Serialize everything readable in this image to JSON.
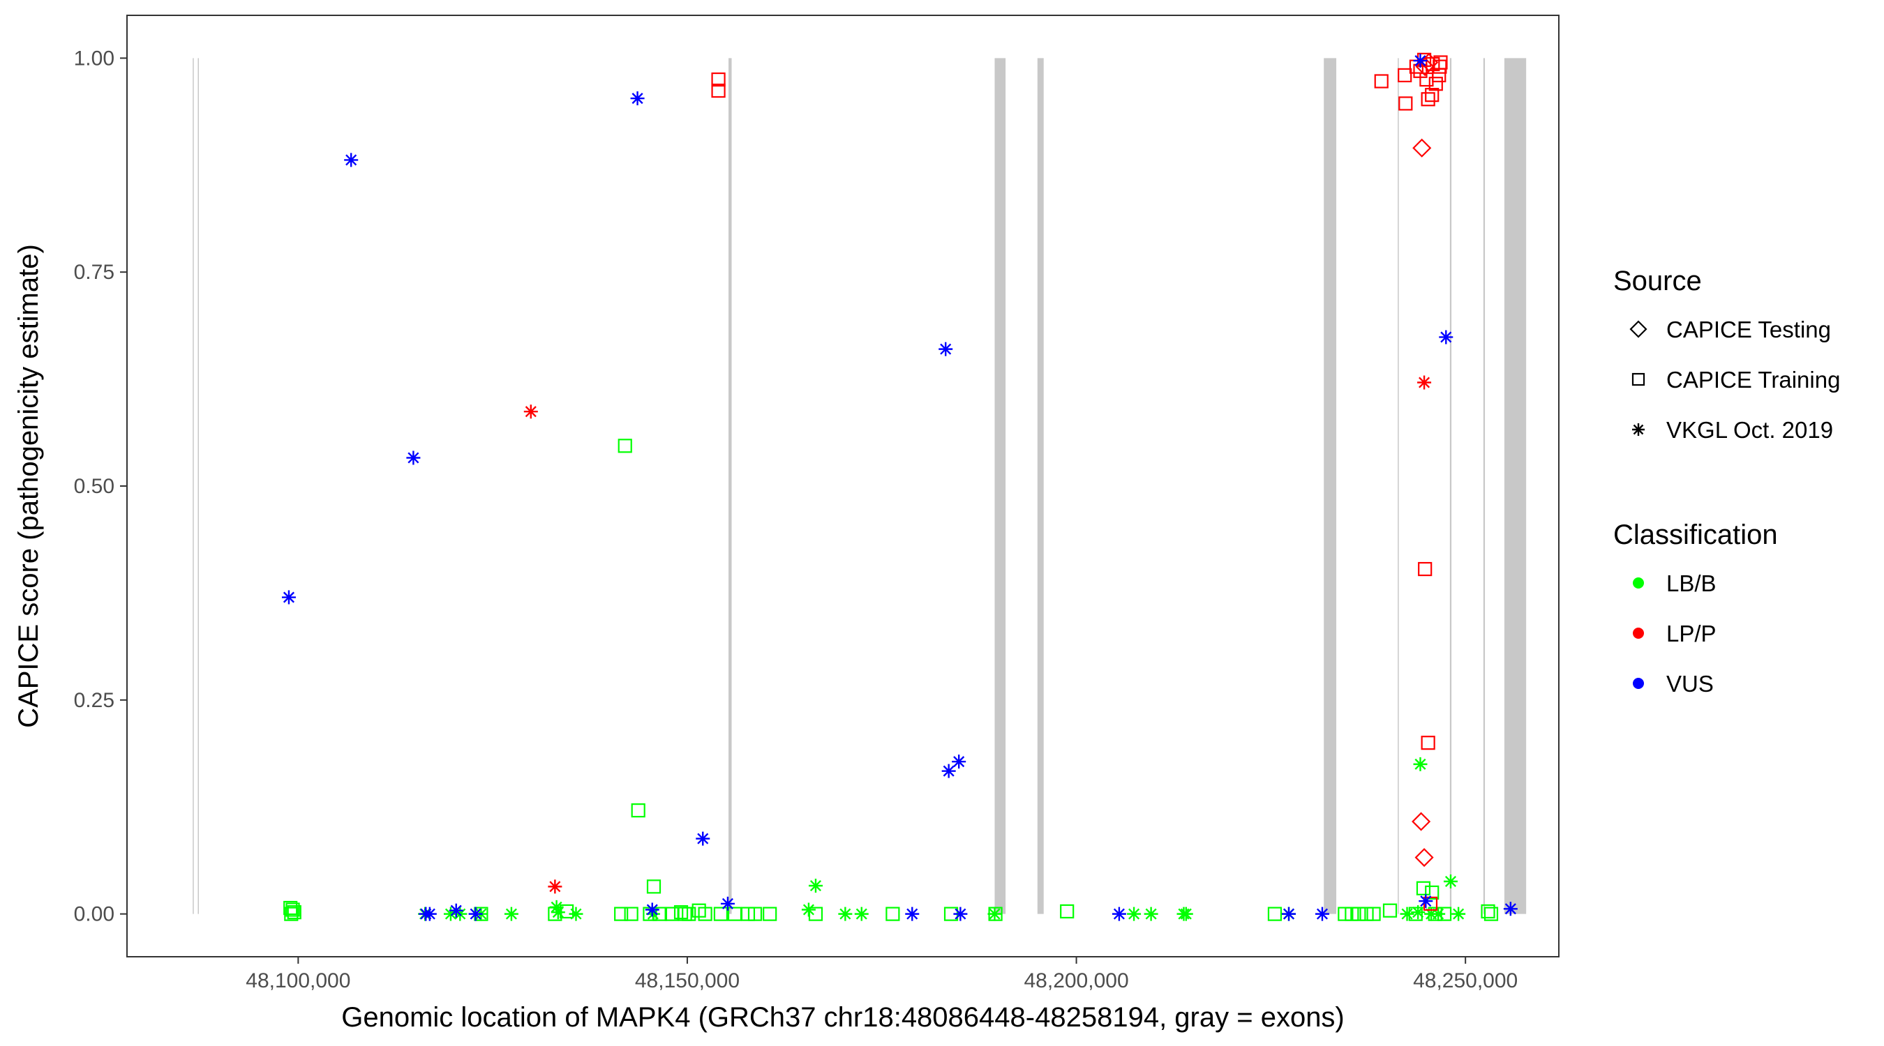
{
  "chart_data": {
    "type": "scatter",
    "title": "",
    "xlabel": "Genomic location of MAPK4 (GRCh37 chr18:48086448-48258194, gray = exons)",
    "ylabel": "CAPICE score (pathogenicity estimate)",
    "xlim": [
      48078000,
      48262000
    ],
    "ylim": [
      -0.05,
      1.05
    ],
    "x_ticks": [
      48100000,
      48150000,
      48200000,
      48250000
    ],
    "x_tick_labels": [
      "48,100,000",
      "48,150,000",
      "48,200,000",
      "48,250,000"
    ],
    "y_ticks": [
      0,
      0.25,
      0.5,
      0.75,
      1
    ],
    "y_tick_labels": [
      "0.00",
      "0.25",
      "0.50",
      "0.75",
      "1.00"
    ],
    "grid": false,
    "legend_position": "right",
    "colors": {
      "LB/B": "#00ff00",
      "LP/P": "#ff0000",
      "VUS": "#0000ff",
      "exon": "#c8c8c8"
    },
    "exons": [
      {
        "start": 48086448,
        "end": 48086550
      },
      {
        "start": 48087100,
        "end": 48087200
      },
      {
        "start": 48155300,
        "end": 48155700
      },
      {
        "start": 48189500,
        "end": 48190900
      },
      {
        "start": 48195000,
        "end": 48195800
      },
      {
        "start": 48231800,
        "end": 48233400
      },
      {
        "start": 48241300,
        "end": 48241400
      },
      {
        "start": 48248000,
        "end": 48248200
      },
      {
        "start": 48252300,
        "end": 48252500
      },
      {
        "start": 48255000,
        "end": 48257800
      }
    ],
    "legends": [
      {
        "title": "Source",
        "entries": [
          {
            "label": "CAPICE Testing",
            "shape": "diamond"
          },
          {
            "label": "CAPICE Training",
            "shape": "square"
          },
          {
            "label": "VKGL Oct. 2019",
            "shape": "asterisk"
          }
        ]
      },
      {
        "title": "Classification",
        "entries": [
          {
            "label": "LB/B",
            "color": "#00ff00"
          },
          {
            "label": "LP/P",
            "color": "#ff0000"
          },
          {
            "label": "VUS",
            "color": "#0000ff"
          }
        ]
      }
    ],
    "series": [
      {
        "source": "CAPICE Testing",
        "classification": "LP/P",
        "shape": "diamond",
        "points": [
          [
            48244400,
            0.895
          ],
          [
            48244300,
            0.108
          ],
          [
            48244700,
            0.066
          ],
          [
            48244800,
            0.99
          ],
          [
            48245300,
            0.995
          ]
        ]
      },
      {
        "source": "CAPICE Training",
        "classification": "LP/P",
        "shape": "square",
        "points": [
          [
            48154000,
            0.975
          ],
          [
            48154000,
            0.962
          ],
          [
            48239200,
            0.973
          ],
          [
            48242200,
            0.98
          ],
          [
            48242300,
            0.947
          ],
          [
            48243700,
            0.99
          ],
          [
            48244200,
            0.985
          ],
          [
            48244700,
            0.998
          ],
          [
            48245000,
            0.975
          ],
          [
            48245200,
            0.952
          ],
          [
            48245700,
            0.957
          ],
          [
            48245800,
            0.993
          ],
          [
            48246200,
            0.97
          ],
          [
            48246700,
            0.99
          ],
          [
            48246800,
            0.995
          ],
          [
            48246600,
            0.98
          ],
          [
            48244800,
            0.403
          ],
          [
            48245200,
            0.2
          ],
          [
            48245500,
            0.012
          ]
        ]
      },
      {
        "source": "CAPICE Training",
        "classification": "LB/B",
        "shape": "square",
        "points": [
          [
            48099000,
            0.007
          ],
          [
            48099300,
            0.005
          ],
          [
            48099500,
            0.002
          ],
          [
            48099100,
            0.0
          ],
          [
            48123500,
            0.0
          ],
          [
            48133000,
            0.0
          ],
          [
            48134500,
            0.003
          ],
          [
            48142000,
            0.547
          ],
          [
            48143700,
            0.121
          ],
          [
            48145700,
            0.032
          ],
          [
            48141500,
            0.0
          ],
          [
            48142800,
            0.0
          ],
          [
            48145200,
            0.0
          ],
          [
            48146500,
            0.0
          ],
          [
            48148000,
            0.0
          ],
          [
            48149200,
            0.002
          ],
          [
            48149700,
            0.0
          ],
          [
            48150200,
            0.0
          ],
          [
            48151500,
            0.004
          ],
          [
            48152300,
            0.0
          ],
          [
            48154300,
            0.0
          ],
          [
            48156100,
            0.0
          ],
          [
            48157800,
            0.0
          ],
          [
            48158700,
            0.0
          ],
          [
            48160600,
            0.0
          ],
          [
            48166500,
            0.0
          ],
          [
            48176400,
            0.0
          ],
          [
            48183900,
            0.0
          ],
          [
            48189600,
            0.0
          ],
          [
            48198800,
            0.003
          ],
          [
            48225500,
            0.0
          ],
          [
            48234500,
            0.0
          ],
          [
            48235400,
            0.0
          ],
          [
            48236300,
            0.0
          ],
          [
            48237300,
            0.0
          ],
          [
            48238200,
            0.0
          ],
          [
            48240300,
            0.004
          ],
          [
            48243600,
            0.0
          ],
          [
            48244600,
            0.03
          ],
          [
            48245700,
            0.025
          ],
          [
            48246100,
            0.0
          ],
          [
            48247300,
            0.0
          ],
          [
            48252900,
            0.003
          ],
          [
            48253300,
            0.0
          ]
        ]
      },
      {
        "source": "VKGL Oct. 2019",
        "classification": "VUS",
        "shape": "asterisk",
        "points": [
          [
            48098800,
            0.37
          ],
          [
            48106800,
            0.881
          ],
          [
            48114800,
            0.533
          ],
          [
            48143600,
            0.953
          ],
          [
            48183200,
            0.66
          ],
          [
            48183600,
            0.167
          ],
          [
            48184900,
            0.178
          ],
          [
            48152000,
            0.088
          ],
          [
            48155200,
            0.012
          ],
          [
            48145500,
            0.005
          ],
          [
            48116400,
            0.0
          ],
          [
            48116900,
            0.0
          ],
          [
            48120300,
            0.004
          ],
          [
            48122800,
            0.0
          ],
          [
            48178900,
            0.0
          ],
          [
            48185100,
            0.0
          ],
          [
            48205500,
            0.0
          ],
          [
            48227300,
            0.0
          ],
          [
            48231600,
            0.0
          ],
          [
            48244200,
            0.997
          ],
          [
            48247500,
            0.674
          ],
          [
            48244900,
            0.015
          ],
          [
            48255800,
            0.006
          ]
        ]
      },
      {
        "source": "VKGL Oct. 2019",
        "classification": "LP/P",
        "shape": "asterisk",
        "points": [
          [
            48129900,
            0.587
          ],
          [
            48133000,
            0.032
          ],
          [
            48244700,
            0.621
          ]
        ]
      },
      {
        "source": "VKGL Oct. 2019",
        "classification": "LB/B",
        "shape": "asterisk",
        "points": [
          [
            48116300,
            0.0
          ],
          [
            48119600,
            0.0
          ],
          [
            48120800,
            0.0
          ],
          [
            48123500,
            0.0
          ],
          [
            48127400,
            0.0
          ],
          [
            48133200,
            0.008
          ],
          [
            48133400,
            0.002
          ],
          [
            48135700,
            0.0
          ],
          [
            48145600,
            0.0
          ],
          [
            48165600,
            0.005
          ],
          [
            48166500,
            0.033
          ],
          [
            48170300,
            0.0
          ],
          [
            48172400,
            0.0
          ],
          [
            48189500,
            0.0
          ],
          [
            48207400,
            0.0
          ],
          [
            48209600,
            0.0
          ],
          [
            48213800,
            0.0
          ],
          [
            48214100,
            0.0
          ],
          [
            48227300,
            0.0
          ],
          [
            48242500,
            0.0
          ],
          [
            48243900,
            0.002
          ],
          [
            48244200,
            0.175
          ],
          [
            48245600,
            0.0
          ],
          [
            48246500,
            0.0
          ],
          [
            48248100,
            0.038
          ],
          [
            48249100,
            0.0
          ]
        ]
      }
    ]
  }
}
